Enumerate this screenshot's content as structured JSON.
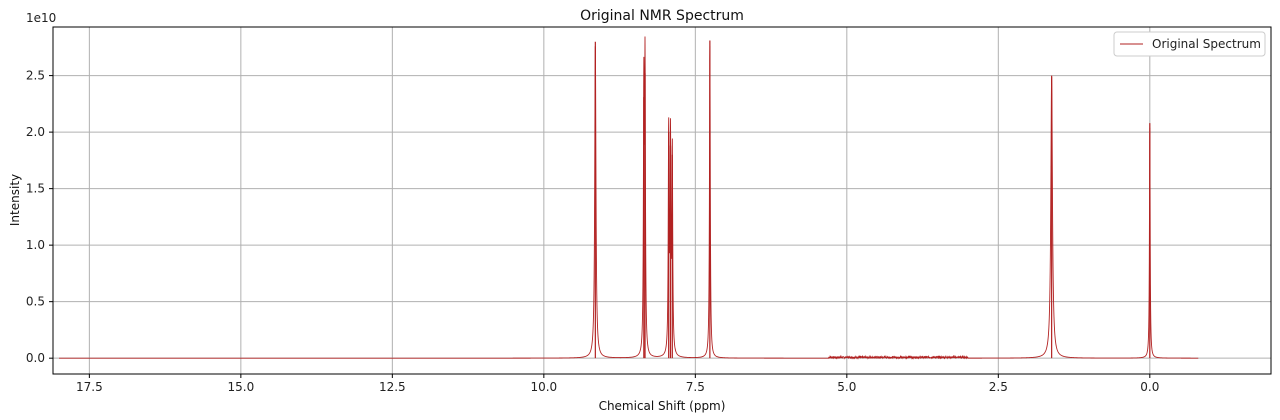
{
  "chart_data": {
    "type": "line",
    "title": "Original NMR Spectrum",
    "xlabel": "Chemical Shift (ppm)",
    "ylabel": "Intensity",
    "y_offset_text": "1e10",
    "x_inverted": true,
    "xlim": [
      18.1,
      -2.0
    ],
    "ylim": [
      -0.14,
      2.93
    ],
    "y_scale_factor": 10000000000.0,
    "x_ticks": [
      17.5,
      15.0,
      12.5,
      10.0,
      7.5,
      5.0,
      2.5,
      0.0
    ],
    "x_tick_labels": [
      "17.5",
      "15.0",
      "12.5",
      "10.0",
      "7.5",
      "5.0",
      "2.5",
      "0.0"
    ],
    "y_ticks": [
      0.0,
      0.5,
      1.0,
      1.5,
      2.0,
      2.5
    ],
    "y_tick_labels": [
      "0.0",
      "0.5",
      "1.0",
      "1.5",
      "2.0",
      "2.5"
    ],
    "grid": true,
    "legend_position": "top-right",
    "series": [
      {
        "name": "Original Spectrum",
        "color": "#b22222",
        "x_range": [
          18.0,
          -0.8
        ],
        "peaks": [
          {
            "center": 9.15,
            "height": 2.8,
            "width": 0.012
          },
          {
            "center": 8.33,
            "height": 2.52,
            "width": 0.008
          },
          {
            "center": 8.35,
            "height": 2.31,
            "width": 0.008
          },
          {
            "center": 7.94,
            "height": 2.0,
            "width": 0.008
          },
          {
            "center": 7.91,
            "height": 1.88,
            "width": 0.008
          },
          {
            "center": 7.88,
            "height": 1.8,
            "width": 0.008
          },
          {
            "center": 7.26,
            "height": 2.81,
            "width": 0.008
          },
          {
            "center": 1.62,
            "height": 2.5,
            "width": 0.016
          },
          {
            "center": 0.0,
            "height": 2.08,
            "width": 0.007
          }
        ],
        "noise_region": [
          5.3,
          3.0
        ],
        "noise_level": 0.015
      }
    ]
  }
}
